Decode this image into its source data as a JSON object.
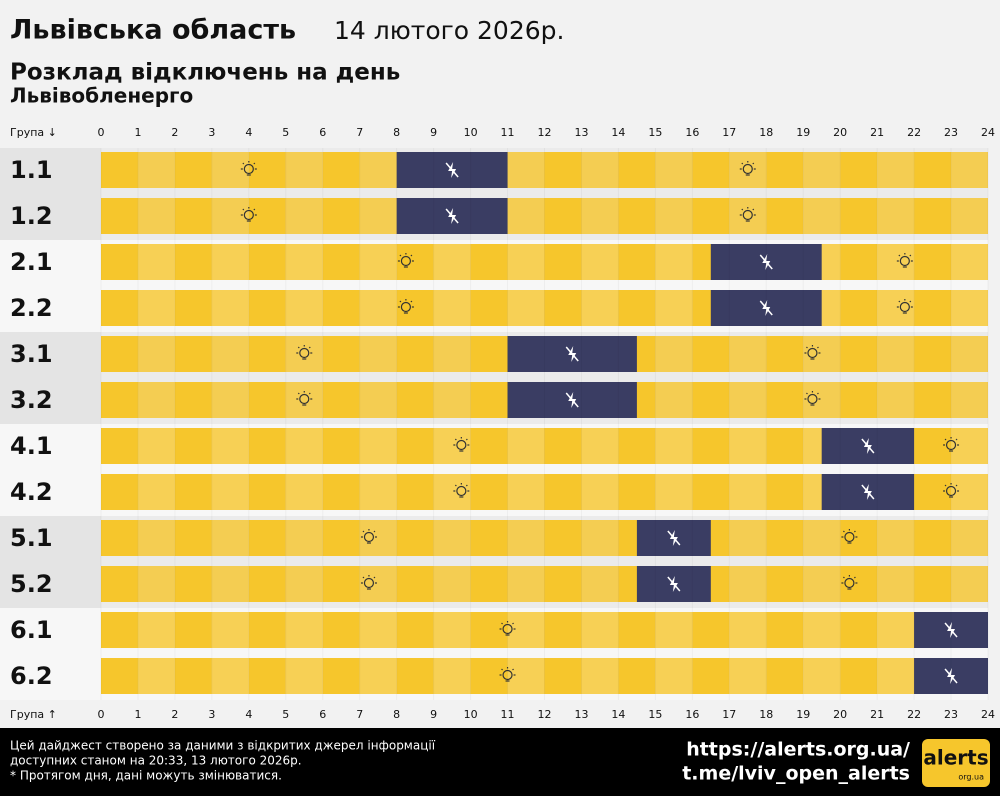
{
  "chart_data": {
    "type": "timeline",
    "title": "Львівська область",
    "date": "14 лютого 2026р.",
    "subtitle": "Розклад відключень на день",
    "source": "Львівобленерго",
    "axis_label_top": "Група ↓",
    "axis_label_bottom": "Група ↑",
    "xlim": [
      0,
      24
    ],
    "xticks": [
      0,
      1,
      2,
      3,
      4,
      5,
      6,
      7,
      8,
      9,
      10,
      11,
      12,
      13,
      14,
      15,
      16,
      17,
      18,
      19,
      20,
      21,
      22,
      23,
      24
    ],
    "on_color": "#f6c62c",
    "off_color": "#3a3d63",
    "rows": [
      {
        "name": "1.1",
        "outages": [
          [
            8,
            11
          ]
        ]
      },
      {
        "name": "1.2",
        "outages": [
          [
            8,
            11
          ]
        ]
      },
      {
        "name": "2.1",
        "outages": [
          [
            16.5,
            19.5
          ]
        ]
      },
      {
        "name": "2.2",
        "outages": [
          [
            16.5,
            19.5
          ]
        ]
      },
      {
        "name": "3.1",
        "outages": [
          [
            11,
            14.5
          ]
        ]
      },
      {
        "name": "3.2",
        "outages": [
          [
            11,
            14.5
          ]
        ]
      },
      {
        "name": "4.1",
        "outages": [
          [
            19.5,
            22
          ]
        ]
      },
      {
        "name": "4.2",
        "outages": [
          [
            19.5,
            22
          ]
        ]
      },
      {
        "name": "5.1",
        "outages": [
          [
            14.5,
            16.5
          ]
        ]
      },
      {
        "name": "5.2",
        "outages": [
          [
            14.5,
            16.5
          ]
        ]
      },
      {
        "name": "6.1",
        "outages": [
          [
            22,
            24
          ]
        ]
      },
      {
        "name": "6.2",
        "outages": [
          [
            22,
            24
          ]
        ]
      }
    ]
  },
  "footer": {
    "note_lines": [
      "Цей дайджест створено за даними з відкритих джерел інформації",
      "доступних станом на 20:33, 13 лютого 2026р.",
      "* Протягом дня, дані можуть змінюватися."
    ],
    "links": [
      "https://alerts.org.ua/",
      "t.me/lviv_open_alerts"
    ],
    "logo": "alerts",
    "logo_sub": "org.ua"
  }
}
